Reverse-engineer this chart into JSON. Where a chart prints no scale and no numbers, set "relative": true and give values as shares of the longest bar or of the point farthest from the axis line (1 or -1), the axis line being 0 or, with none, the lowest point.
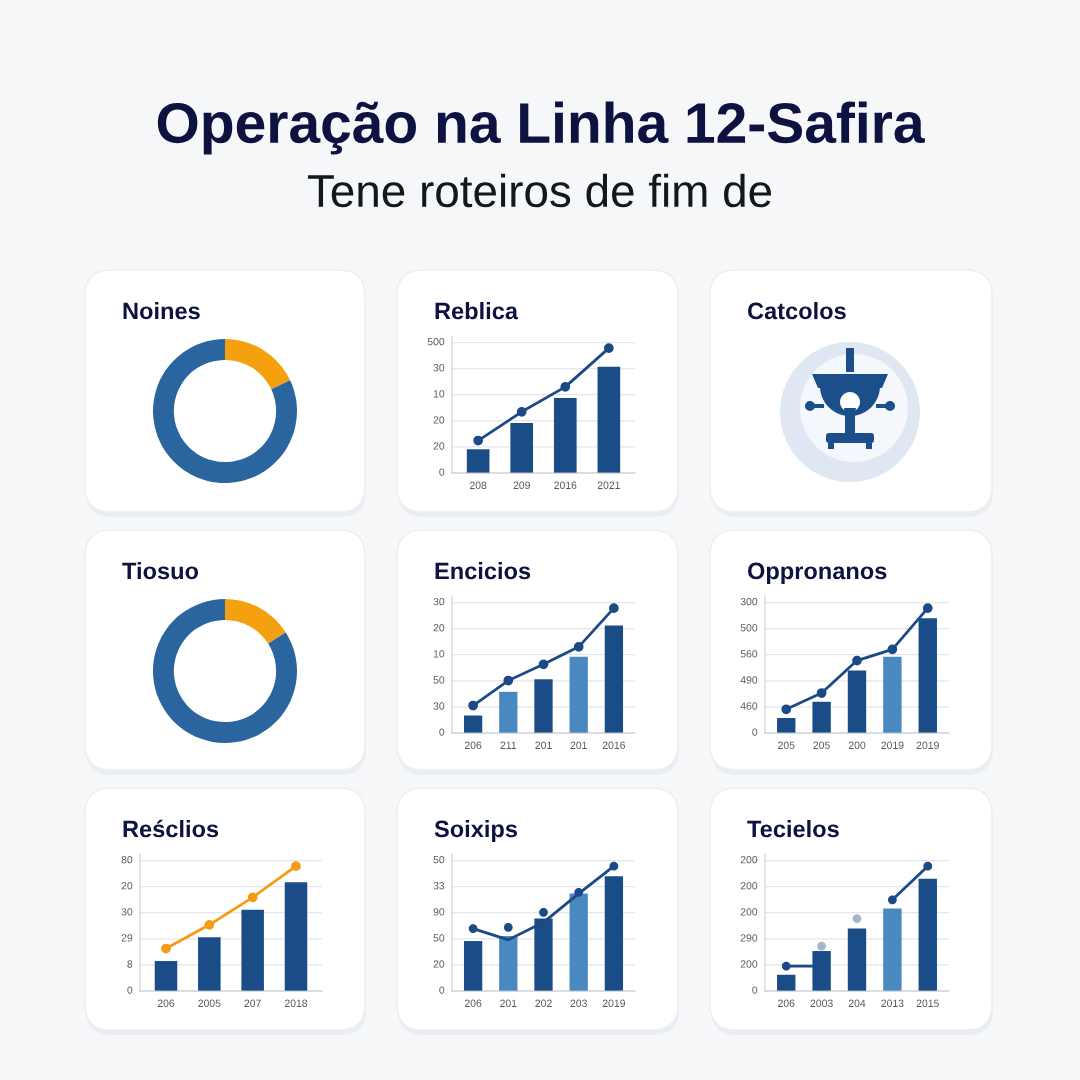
{
  "chart_data": [
    {
      "type": "other",
      "title": "Operação na Linha 12-Safira",
      "subtitle": "Tene roteiros de fim de"
    },
    {
      "type": "donut",
      "title": "Noines",
      "categories": [
        null,
        null
      ],
      "values": [
        18,
        82
      ],
      "colors": [
        "#f5a10f",
        "#2a65a0"
      ]
    },
    {
      "type": "bar",
      "title": "Reblica",
      "relative": true,
      "categories": [
        "208",
        "209",
        "2016",
        "2021"
      ],
      "series": [
        {
          "type": "bar",
          "colors": [
            "#1a4d87",
            "#1a4d87",
            "#1a4d87",
            "#1a4d87"
          ],
          "values": [
            0.19,
            0.4,
            0.6,
            0.85
          ]
        },
        {
          "type": "line",
          "color": "#1b4a86",
          "marker": "circle",
          "values": [
            0.26,
            0.49,
            0.69,
            1
          ]
        }
      ],
      "annotations": [
        "0",
        "20",
        "20",
        "10",
        "30",
        "500"
      ],
      "grid": "y"
    },
    {
      "type": "other",
      "title": "Catcolos"
    },
    {
      "type": "donut",
      "title": "Tiosuo",
      "categories": [
        null,
        null
      ],
      "values": [
        16,
        84
      ],
      "colors": [
        "#f5a10f",
        "#2a65a0"
      ]
    },
    {
      "type": "bar",
      "title": "Encicios",
      "relative": true,
      "categories": [
        "206",
        "211",
        "201",
        "201",
        "2016"
      ],
      "series": [
        {
          "type": "bar",
          "colors": [
            "#1a4d87",
            "#4a88c0",
            "#1a4d87",
            "#4a88c0",
            "#1a4d87"
          ],
          "values": [
            0.14,
            0.33,
            0.43,
            0.61,
            0.86
          ]
        },
        {
          "type": "line",
          "color": "#1b4a86",
          "marker": "circle",
          "values": [
            0.22,
            0.42,
            0.55,
            0.69,
            1
          ]
        }
      ],
      "annotations": [
        "0",
        "30",
        "50",
        "10",
        "20",
        "30"
      ],
      "grid": "y"
    },
    {
      "type": "bar",
      "title": "Oppronanos",
      "relative": true,
      "categories": [
        "205",
        "205",
        "200",
        "2019",
        "2019"
      ],
      "series": [
        {
          "type": "bar",
          "colors": [
            "#1a4d87",
            "#1a4d87",
            "#1a4d87",
            "#4a88c0",
            "#1a4d87"
          ],
          "values": [
            0.12,
            0.25,
            0.5,
            0.61,
            0.92
          ]
        },
        {
          "type": "line",
          "color": "#1b4a86",
          "marker": "circle",
          "values": [
            0.19,
            0.32,
            0.58,
            0.67,
            1
          ]
        }
      ],
      "annotations": [
        "0",
        "460",
        "490",
        "560",
        "500",
        "300"
      ],
      "grid": "y"
    },
    {
      "type": "bar",
      "title": "Reśclios",
      "relative": true,
      "categories": [
        "206",
        "2005",
        "207",
        "2018"
      ],
      "series": [
        {
          "type": "bar",
          "colors": [
            "#1a4d87",
            "#1a4d87",
            "#1a4d87",
            "#1a4d87"
          ],
          "values": [
            0.24,
            0.43,
            0.65,
            0.87
          ]
        },
        {
          "type": "line",
          "color": "#f39c12",
          "marker": "circle",
          "values": [
            0.34,
            0.53,
            0.75,
            1
          ]
        }
      ],
      "annotations": [
        "0",
        "8",
        "29",
        "30",
        "20",
        "80"
      ],
      "grid": "y"
    },
    {
      "type": "bar",
      "title": "Soixips",
      "relative": true,
      "categories": [
        "206",
        "201",
        "202",
        "203",
        "2019"
      ],
      "series": [
        {
          "type": "bar",
          "colors": [
            "#1a4d87",
            "#4a88c0",
            "#1a4d87",
            "#4a88c0",
            "#1a4d87"
          ],
          "values": [
            0.4,
            0.44,
            0.58,
            0.78,
            0.92
          ]
        },
        {
          "type": "line",
          "color": "#1b4a86",
          "values": [
            0.5,
            0.41,
            0.55,
            0.78,
            1
          ]
        },
        {
          "type": "scatter",
          "color": "#1b4a86",
          "marker": "circle",
          "values": [
            0.5,
            0.51,
            0.63,
            0.79,
            1
          ]
        }
      ],
      "annotations": [
        "0",
        "20",
        "50",
        "90",
        "33",
        "50"
      ],
      "grid": "y"
    },
    {
      "type": "bar",
      "title": "Tecielos",
      "relative": true,
      "categories": [
        "206",
        "2003",
        "204",
        "2013",
        "2015"
      ],
      "series": [
        {
          "type": "bar",
          "colors": [
            "#1a4d87",
            "#1a4d87",
            "#1a4d87",
            "#4a88c0",
            "#1a4d87"
          ],
          "values": [
            0.13,
            0.32,
            0.5,
            0.66,
            0.9
          ]
        },
        {
          "type": "line",
          "color": "#1b4a86",
          "values": [
            0.2,
            0.2,
            null,
            0.73,
            1
          ]
        },
        {
          "type": "scatter",
          "color": "#1b4a86",
          "marker": "circle",
          "values": [
            0.2,
            null,
            null,
            0.73,
            1
          ]
        },
        {
          "type": "scatter",
          "color": "#a3b6ca",
          "marker": "circle",
          "values": [
            null,
            0.36,
            0.58,
            null,
            null
          ]
        }
      ],
      "annotations": [
        "0",
        "200",
        "290",
        "200",
        "200",
        "200"
      ],
      "grid": "y"
    }
  ]
}
